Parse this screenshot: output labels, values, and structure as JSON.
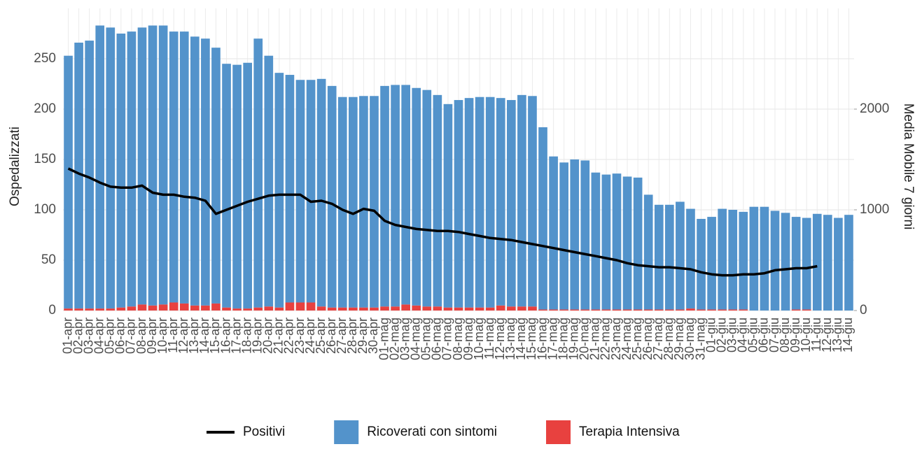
{
  "chart_data": {
    "type": "bar",
    "stacked": true,
    "y_label": "Ospedalizzati",
    "y2_label": "Media Mobile 7 giorni",
    "categories": [
      "01-apr",
      "02-apr",
      "03-apr",
      "04-apr",
      "05-apr",
      "06-apr",
      "07-apr",
      "08-apr",
      "09-apr",
      "10-apr",
      "11-apr",
      "12-apr",
      "13-apr",
      "14-apr",
      "15-apr",
      "16-apr",
      "17-apr",
      "18-apr",
      "19-apr",
      "20-apr",
      "21-apr",
      "22-apr",
      "23-apr",
      "24-apr",
      "25-apr",
      "26-apr",
      "27-apr",
      "28-apr",
      "29-apr",
      "30-apr",
      "01-mag",
      "02-mag",
      "03-mag",
      "04-mag",
      "05-mag",
      "06-mag",
      "07-mag",
      "08-mag",
      "09-mag",
      "10-mag",
      "11-mag",
      "12-mag",
      "13-mag",
      "14-mag",
      "15-mag",
      "16-mag",
      "17-mag",
      "18-mag",
      "19-mag",
      "20-mag",
      "21-mag",
      "22-mag",
      "23-mag",
      "24-mag",
      "25-mag",
      "26-mag",
      "27-mag",
      "28-mag",
      "29-mag",
      "30-mag",
      "31-mag",
      "01-giu",
      "02-giu",
      "03-giu",
      "04-giu",
      "05-giu",
      "06-giu",
      "07-giu",
      "08-giu",
      "09-giu",
      "10-giu",
      "11-giu",
      "12-giu",
      "13-giu",
      "14-giu"
    ],
    "series": [
      {
        "name": "Positivi",
        "type": "line",
        "axis": "y2",
        "color": "#000000",
        "values": [
          1410,
          1360,
          1320,
          1270,
          1230,
          1220,
          1220,
          1240,
          1170,
          1150,
          1150,
          1130,
          1120,
          1090,
          960,
          1000,
          1040,
          1080,
          1110,
          1140,
          1150,
          1150,
          1150,
          1080,
          1090,
          1060,
          1000,
          960,
          1010,
          990,
          890,
          850,
          830,
          810,
          800,
          790,
          790,
          780,
          760,
          740,
          720,
          710,
          700,
          680,
          660,
          640,
          620,
          600,
          580,
          560,
          540,
          520,
          500,
          470,
          450,
          440,
          430,
          430,
          420,
          410,
          380,
          360,
          350,
          350,
          360,
          360,
          370,
          400,
          410,
          420,
          420,
          440,
          null,
          null,
          null
        ]
      },
      {
        "name": "Ricoverati con sintomi",
        "type": "bar",
        "color": "#5393cb",
        "values": [
          251,
          264,
          266,
          281,
          279,
          272,
          273,
          275,
          278,
          277,
          269,
          270,
          267,
          265,
          254,
          242,
          242,
          244,
          267,
          249,
          233,
          226,
          221,
          221,
          226,
          220,
          209,
          209,
          210,
          210,
          219,
          220,
          218,
          216,
          215,
          210,
          202,
          206,
          208,
          209,
          209,
          206,
          205,
          210,
          209,
          181,
          152,
          146,
          149,
          148,
          136,
          134,
          135,
          132,
          131,
          114,
          104,
          104,
          107,
          99,
          90,
          92,
          100,
          99,
          97,
          103,
          103,
          99,
          97,
          92,
          91,
          96,
          95,
          92,
          95
        ]
      },
      {
        "name": "Terapia Intensiva",
        "type": "bar",
        "color": "#e8413f",
        "values": [
          2,
          2,
          2,
          2,
          2,
          3,
          4,
          6,
          5,
          6,
          8,
          7,
          5,
          5,
          7,
          3,
          2,
          2,
          3,
          4,
          3,
          8,
          8,
          8,
          4,
          3,
          3,
          3,
          3,
          3,
          4,
          4,
          6,
          5,
          4,
          4,
          3,
          3,
          3,
          3,
          3,
          5,
          4,
          4,
          4,
          1,
          1,
          1,
          1,
          1,
          1,
          1,
          1,
          1,
          1,
          1,
          1,
          1,
          1,
          2,
          1,
          1,
          1,
          1,
          1,
          0,
          0,
          0,
          0,
          1,
          1,
          0,
          0,
          0,
          0
        ]
      }
    ],
    "ylim": [
      0,
      300
    ],
    "yticks": [
      0,
      50,
      100,
      150,
      200,
      250
    ],
    "y2lim": [
      0,
      3000
    ],
    "y2ticks": [
      0,
      1000,
      2000
    ],
    "grid": true,
    "legend": "bottom"
  }
}
